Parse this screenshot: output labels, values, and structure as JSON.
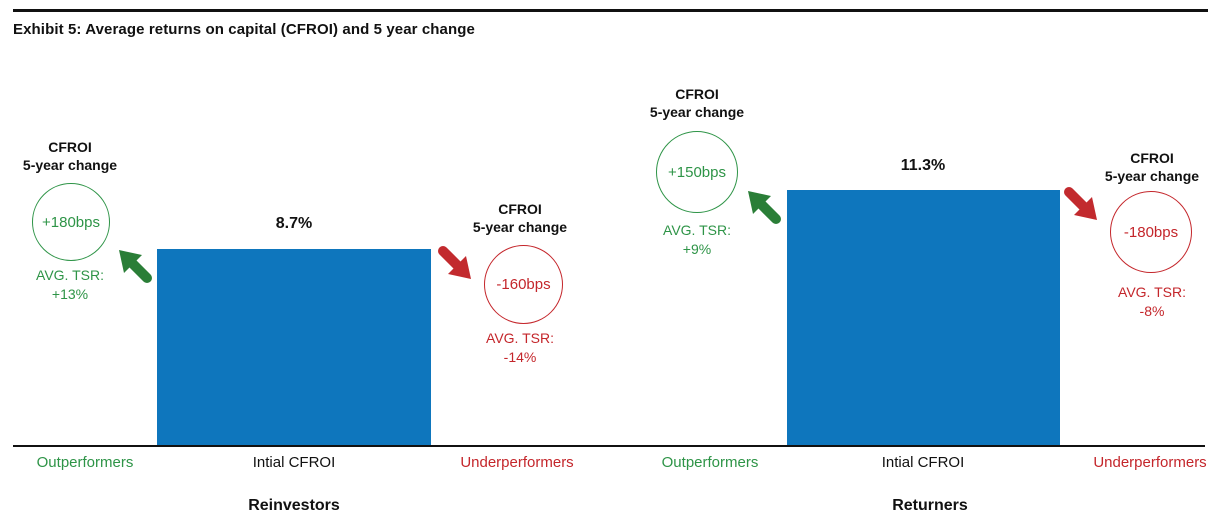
{
  "title": "Exhibit 5: Average returns on capital (CFROI) and 5 year change",
  "colors": {
    "bar_blue": "#0e76bd",
    "green": "#2e9447",
    "red": "#c4262b",
    "black": "#111111"
  },
  "chart_data": [
    {
      "type": "bar",
      "title": "Reinvestors",
      "categories": [
        "Intial CFROI"
      ],
      "values": [
        8.7
      ],
      "value_labels": [
        "8.7%"
      ],
      "ylim": [
        0,
        11.3
      ],
      "grid": false,
      "annotations": {
        "outperformers": {
          "label": "Outperformers",
          "cfroi_5yr_change": "+180bps",
          "cfroi_5yr_change_bps": 180,
          "avg_tsr": "+13%",
          "avg_tsr_pct": 13
        },
        "underperformers": {
          "label": "Underperformers",
          "cfroi_5yr_change": "-160bps",
          "cfroi_5yr_change_bps": -160,
          "avg_tsr": "-14%",
          "avg_tsr_pct": -14
        }
      }
    },
    {
      "type": "bar",
      "title": "Returners",
      "categories": [
        "Intial CFROI"
      ],
      "values": [
        11.3
      ],
      "value_labels": [
        "11.3%"
      ],
      "ylim": [
        0,
        11.3
      ],
      "grid": false,
      "annotations": {
        "outperformers": {
          "label": "Outperformers",
          "cfroi_5yr_change": "+150bps",
          "cfroi_5yr_change_bps": 150,
          "avg_tsr": "+9%",
          "avg_tsr_pct": 9
        },
        "underperformers": {
          "label": "Underperformers",
          "cfroi_5yr_change": "-180bps",
          "cfroi_5yr_change_bps": -180,
          "avg_tsr": "-8%",
          "avg_tsr_pct": -8
        }
      }
    }
  ],
  "panels": [
    {
      "group_label": "Reinvestors",
      "bar_value_label": "8.7%",
      "bar_category_label": "Intial CFROI",
      "outperformer": {
        "heading_line1": "CFROI",
        "heading_line2": "5-year change",
        "circle_value": "+180bps",
        "tsr_label": "AVG. TSR:",
        "tsr_value": "+13%",
        "axis_label": "Outperformers"
      },
      "underperformer": {
        "heading_line1": "CFROI",
        "heading_line2": "5-year change",
        "circle_value": "-160bps",
        "tsr_label": "AVG. TSR:",
        "tsr_value": "-14%",
        "axis_label": "Underperformers"
      }
    },
    {
      "group_label": "Returners",
      "bar_value_label": "11.3%",
      "bar_category_label": "Intial CFROI",
      "outperformer": {
        "heading_line1": "CFROI",
        "heading_line2": "5-year change",
        "circle_value": "+150bps",
        "tsr_label": "AVG. TSR:",
        "tsr_value": "+9%",
        "axis_label": "Outperformers"
      },
      "underperformer": {
        "heading_line1": "CFROI",
        "heading_line2": "5-year change",
        "circle_value": "-180bps",
        "tsr_label": "AVG. TSR:",
        "tsr_value": "-8%",
        "axis_label": "Underperformers"
      }
    }
  ]
}
